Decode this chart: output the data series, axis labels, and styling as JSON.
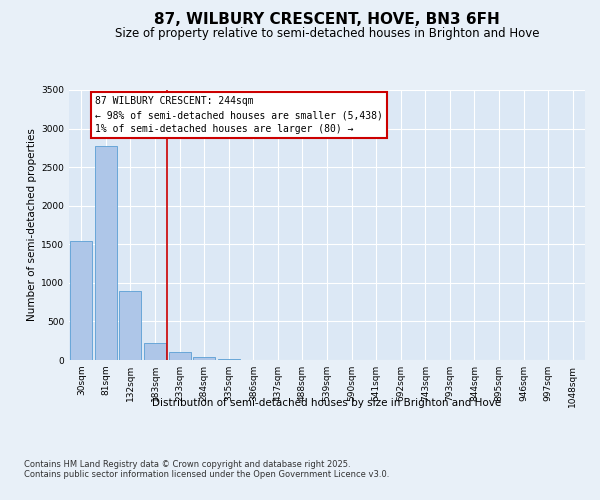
{
  "title": "87, WILBURY CRESCENT, HOVE, BN3 6FH",
  "subtitle": "Size of property relative to semi-detached houses in Brighton and Hove",
  "xlabel": "Distribution of semi-detached houses by size in Brighton and Hove",
  "ylabel": "Number of semi-detached properties",
  "categories": [
    "30sqm",
    "81sqm",
    "132sqm",
    "183sqm",
    "233sqm",
    "284sqm",
    "335sqm",
    "386sqm",
    "437sqm",
    "488sqm",
    "539sqm",
    "590sqm",
    "641sqm",
    "692sqm",
    "743sqm",
    "793sqm",
    "844sqm",
    "895sqm",
    "946sqm",
    "997sqm",
    "1048sqm"
  ],
  "values": [
    1540,
    2780,
    900,
    220,
    100,
    40,
    15,
    5,
    2,
    1,
    0,
    0,
    0,
    0,
    0,
    0,
    0,
    0,
    0,
    0,
    0
  ],
  "bar_color": "#aec6e8",
  "bar_edge_color": "#5a9fd4",
  "vline_color": "#cc0000",
  "annotation_title": "87 WILBURY CRESCENT: 244sqm",
  "annotation_line1": "← 98% of semi-detached houses are smaller (5,438)",
  "annotation_line2": "1% of semi-detached houses are larger (80) →",
  "annotation_box_color": "#cc0000",
  "ylim": [
    0,
    3500
  ],
  "yticks": [
    0,
    500,
    1000,
    1500,
    2000,
    2500,
    3000,
    3500
  ],
  "footer_line1": "Contains HM Land Registry data © Crown copyright and database right 2025.",
  "footer_line2": "Contains public sector information licensed under the Open Government Licence v3.0.",
  "bg_color": "#e8f0f8",
  "plot_bg_color": "#dce8f5",
  "grid_color": "#ffffff",
  "title_fontsize": 11,
  "subtitle_fontsize": 8.5,
  "axis_label_fontsize": 7.5,
  "tick_fontsize": 6.5,
  "annotation_fontsize": 7,
  "footer_fontsize": 6
}
